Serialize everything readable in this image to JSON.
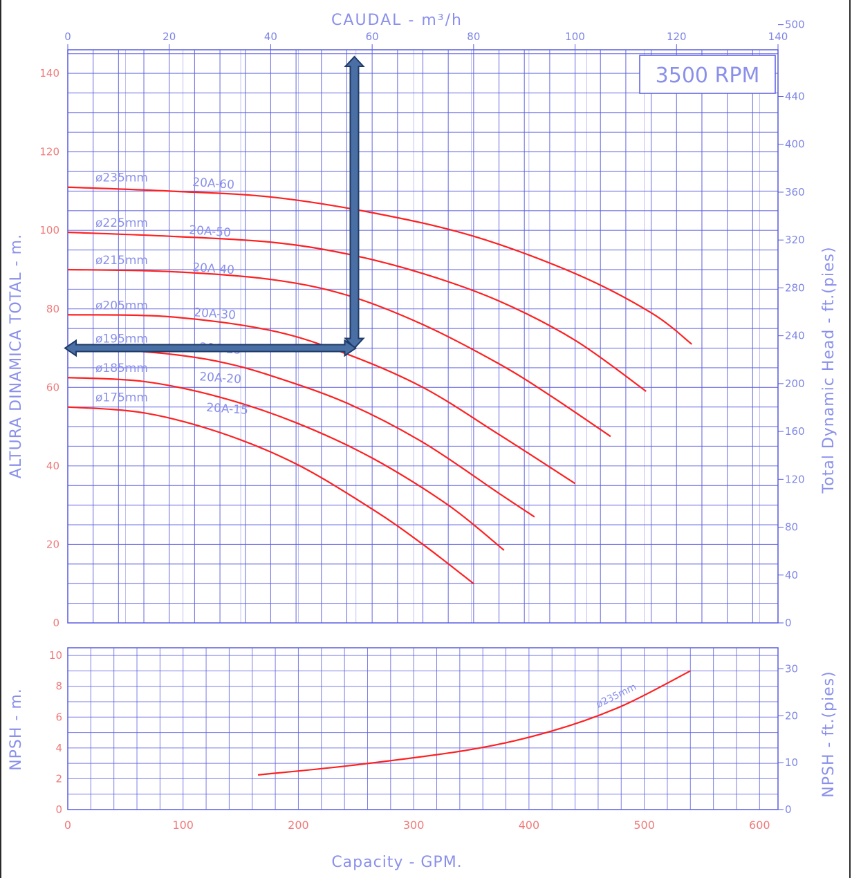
{
  "colors": {
    "grid": "#5a5ce0",
    "curve": "#ff2020",
    "axis_text_blue": "#7f86e6",
    "axis_text_red": "#f07a7a",
    "arrow_fill": "#4a6fa5",
    "arrow_stroke": "#1f3a66",
    "frame": "#2a2a2a"
  },
  "labels": {
    "top_axis_title": "CAUDAL  -  m³/h",
    "bottom_axis_title": "Capacity  -  GPM.",
    "left_axis_title_main": "ALTURA DINAMICA TOTAL  -  m.",
    "right_axis_title_main": "Total Dynamic Head  -  ft.(pies)",
    "left_axis_title_npsh": "NPSH  -  m.",
    "right_axis_title_npsh": "NPSH  -  ft.(pies)",
    "rpm_box": "3500 RPM"
  },
  "chart_data": [
    {
      "type": "line",
      "panel": "head",
      "x_top": {
        "label": "CAUDAL  -  m³/h",
        "ticks": [
          0,
          20,
          40,
          60,
          80,
          100,
          120,
          140
        ],
        "lim": [
          0,
          140
        ]
      },
      "x_bottom_gpm_lim": [
        0,
        616
      ],
      "y_left": {
        "label": "ALTURA DINAMICA TOTAL  -  m.",
        "ticks": [
          0,
          20,
          40,
          60,
          80,
          100,
          120,
          140
        ],
        "lim": [
          0,
          146
        ]
      },
      "y_right": {
        "label": "Total Dynamic Head  -  ft.(pies)",
        "ticks": [
          0,
          40,
          80,
          120,
          160,
          200,
          240,
          280,
          320,
          360,
          400,
          440,
          500
        ],
        "lim": [
          0,
          479
        ]
      },
      "grid": true,
      "series": [
        {
          "name": "ø235mm",
          "model": "20A-60",
          "x": [
            0,
            20,
            40,
            60,
            80,
            100,
            115,
            123
          ],
          "y": [
            111,
            110,
            108.5,
            104.5,
            98.5,
            89,
            79,
            71
          ]
        },
        {
          "name": "ø225mm",
          "model": "20A-50",
          "x": [
            0,
            20,
            40,
            55,
            70,
            85,
            100,
            114
          ],
          "y": [
            99.5,
            98.5,
            97,
            94,
            89,
            82,
            72,
            59
          ]
        },
        {
          "name": "ø215mm",
          "model": "20A-40",
          "x": [
            0,
            20,
            40,
            55,
            70,
            85,
            95,
            107
          ],
          "y": [
            90,
            89.5,
            87.5,
            83.5,
            76,
            66,
            58,
            47.5
          ]
        },
        {
          "name": "ø205mm",
          "model": "20A-30",
          "x": [
            0,
            20,
            40,
            55,
            70,
            85,
            100
          ],
          "y": [
            78.5,
            78,
            74.5,
            68.5,
            60,
            48,
            35.5
          ]
        },
        {
          "name": "ø195mm",
          "model": "20A-25",
          "x": [
            0,
            10,
            20,
            30,
            40,
            55,
            70,
            85,
            92
          ],
          "y": [
            70,
            69.5,
            68.5,
            66.5,
            63,
            56,
            46,
            33,
            27
          ]
        },
        {
          "name": "ø185mm",
          "model": "20A-20",
          "x": [
            0,
            15,
            30,
            45,
            60,
            75,
            86
          ],
          "y": [
            62.5,
            61.5,
            57.5,
            51,
            42,
            30,
            18.5
          ]
        },
        {
          "name": "ø175mm",
          "model": "20A-15",
          "x": [
            0,
            15,
            30,
            45,
            60,
            70,
            80
          ],
          "y": [
            55,
            53.5,
            48.5,
            40.5,
            29,
            20,
            10
          ]
        }
      ],
      "annotation": {
        "text": "3500 RPM",
        "operating_point": {
          "caudal_m3h": 56.5,
          "head_m": 70
        }
      }
    },
    {
      "type": "line",
      "panel": "npsh",
      "x": {
        "label": "Capacity  -  GPM.",
        "ticks": [
          0,
          100,
          200,
          300,
          400,
          500,
          600
        ],
        "lim": [
          0,
          616
        ]
      },
      "y_left": {
        "label": "NPSH  -  m.",
        "ticks": [
          0,
          2,
          4,
          6,
          8,
          10
        ],
        "lim": [
          0,
          10.5
        ]
      },
      "y_right": {
        "label": "NPSH  -  ft.(pies)",
        "ticks": [
          0,
          10,
          20,
          30
        ],
        "lim": [
          0,
          34.5
        ]
      },
      "grid": true,
      "series": [
        {
          "name": "ø235mm",
          "x": [
            165,
            250,
            350,
            420,
            480,
            540
          ],
          "y": [
            2.25,
            2.9,
            3.9,
            5.1,
            6.7,
            9.0
          ]
        }
      ]
    }
  ]
}
